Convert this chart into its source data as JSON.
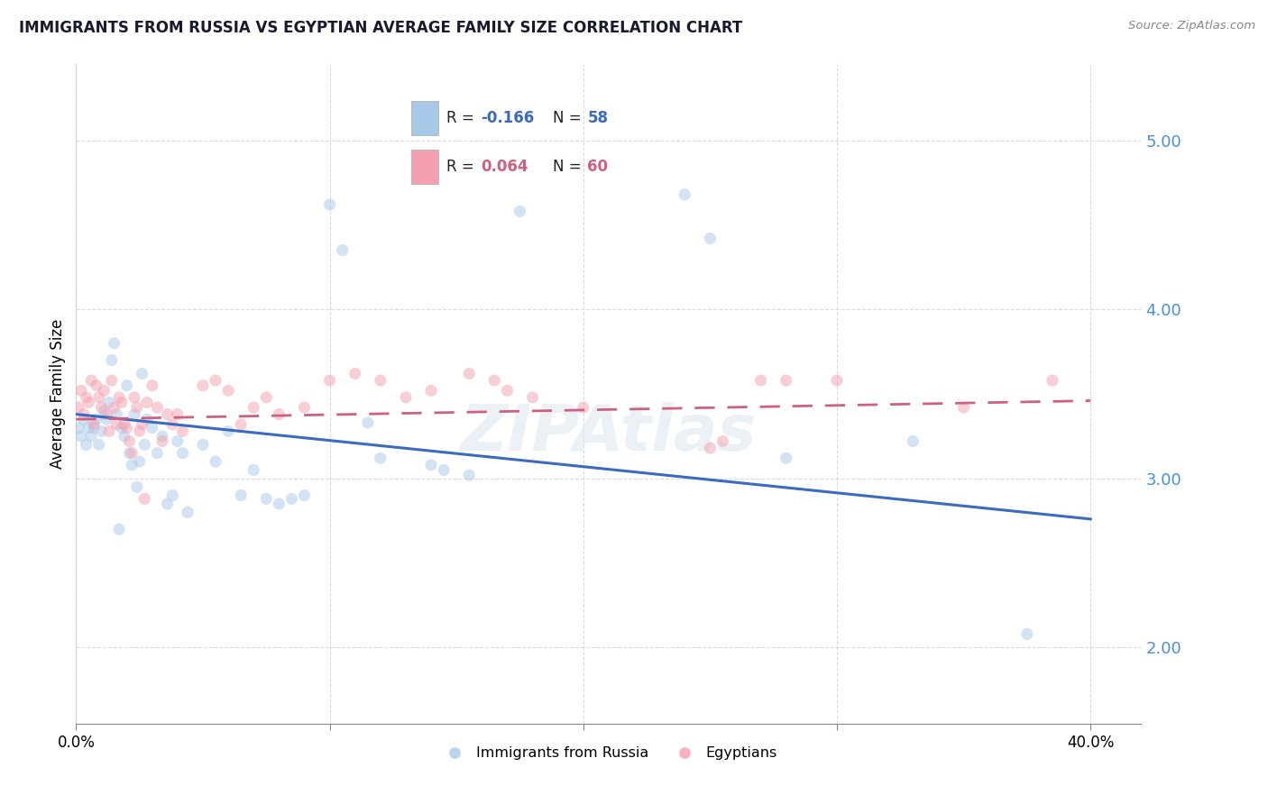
{
  "title": "IMMIGRANTS FROM RUSSIA VS EGYPTIAN AVERAGE FAMILY SIZE CORRELATION CHART",
  "source": "Source: ZipAtlas.com",
  "ylabel": "Average Family Size",
  "yticks": [
    2.0,
    3.0,
    4.0,
    5.0
  ],
  "xlim": [
    0.0,
    0.42
  ],
  "ylim": [
    1.55,
    5.45
  ],
  "blue_color": "#a8c8e8",
  "pink_color": "#f4a0b0",
  "blue_line_color": "#3a6bbf",
  "pink_line_color": "#d06080",
  "blue_scatter": [
    [
      0.001,
      3.3
    ],
    [
      0.002,
      3.25
    ],
    [
      0.003,
      3.35
    ],
    [
      0.004,
      3.2
    ],
    [
      0.005,
      3.3
    ],
    [
      0.006,
      3.25
    ],
    [
      0.007,
      3.3
    ],
    [
      0.008,
      3.35
    ],
    [
      0.009,
      3.2
    ],
    [
      0.01,
      3.28
    ],
    [
      0.011,
      3.4
    ],
    [
      0.012,
      3.35
    ],
    [
      0.013,
      3.45
    ],
    [
      0.014,
      3.7
    ],
    [
      0.015,
      3.8
    ],
    [
      0.016,
      3.38
    ],
    [
      0.017,
      2.7
    ],
    [
      0.018,
      3.3
    ],
    [
      0.019,
      3.25
    ],
    [
      0.02,
      3.55
    ],
    [
      0.021,
      3.15
    ],
    [
      0.022,
      3.08
    ],
    [
      0.023,
      3.38
    ],
    [
      0.024,
      2.95
    ],
    [
      0.025,
      3.1
    ],
    [
      0.026,
      3.62
    ],
    [
      0.027,
      3.2
    ],
    [
      0.028,
      3.35
    ],
    [
      0.03,
      3.3
    ],
    [
      0.032,
      3.15
    ],
    [
      0.034,
      3.25
    ],
    [
      0.036,
      2.85
    ],
    [
      0.038,
      2.9
    ],
    [
      0.04,
      3.22
    ],
    [
      0.042,
      3.15
    ],
    [
      0.044,
      2.8
    ],
    [
      0.05,
      3.2
    ],
    [
      0.055,
      3.1
    ],
    [
      0.06,
      3.28
    ],
    [
      0.065,
      2.9
    ],
    [
      0.07,
      3.05
    ],
    [
      0.075,
      2.88
    ],
    [
      0.08,
      2.85
    ],
    [
      0.085,
      2.88
    ],
    [
      0.09,
      2.9
    ],
    [
      0.1,
      4.62
    ],
    [
      0.105,
      4.35
    ],
    [
      0.115,
      3.33
    ],
    [
      0.12,
      3.12
    ],
    [
      0.14,
      3.08
    ],
    [
      0.145,
      3.05
    ],
    [
      0.155,
      3.02
    ],
    [
      0.175,
      4.58
    ],
    [
      0.24,
      4.68
    ],
    [
      0.25,
      4.42
    ],
    [
      0.28,
      3.12
    ],
    [
      0.33,
      3.22
    ],
    [
      0.375,
      2.08
    ]
  ],
  "pink_scatter": [
    [
      0.001,
      3.42
    ],
    [
      0.002,
      3.52
    ],
    [
      0.003,
      3.38
    ],
    [
      0.004,
      3.48
    ],
    [
      0.005,
      3.45
    ],
    [
      0.006,
      3.58
    ],
    [
      0.007,
      3.32
    ],
    [
      0.008,
      3.55
    ],
    [
      0.009,
      3.48
    ],
    [
      0.01,
      3.42
    ],
    [
      0.011,
      3.52
    ],
    [
      0.012,
      3.38
    ],
    [
      0.013,
      3.28
    ],
    [
      0.014,
      3.58
    ],
    [
      0.015,
      3.42
    ],
    [
      0.016,
      3.32
    ],
    [
      0.017,
      3.48
    ],
    [
      0.018,
      3.45
    ],
    [
      0.019,
      3.32
    ],
    [
      0.02,
      3.3
    ],
    [
      0.021,
      3.22
    ],
    [
      0.022,
      3.15
    ],
    [
      0.023,
      3.48
    ],
    [
      0.024,
      3.42
    ],
    [
      0.025,
      3.28
    ],
    [
      0.026,
      3.32
    ],
    [
      0.027,
      2.88
    ],
    [
      0.028,
      3.45
    ],
    [
      0.03,
      3.55
    ],
    [
      0.032,
      3.42
    ],
    [
      0.034,
      3.22
    ],
    [
      0.036,
      3.38
    ],
    [
      0.038,
      3.32
    ],
    [
      0.04,
      3.38
    ],
    [
      0.042,
      3.28
    ],
    [
      0.05,
      3.55
    ],
    [
      0.055,
      3.58
    ],
    [
      0.06,
      3.52
    ],
    [
      0.065,
      3.32
    ],
    [
      0.07,
      3.42
    ],
    [
      0.075,
      3.48
    ],
    [
      0.08,
      3.38
    ],
    [
      0.09,
      3.42
    ],
    [
      0.1,
      3.58
    ],
    [
      0.11,
      3.62
    ],
    [
      0.12,
      3.58
    ],
    [
      0.13,
      3.48
    ],
    [
      0.14,
      3.52
    ],
    [
      0.155,
      3.62
    ],
    [
      0.165,
      3.58
    ],
    [
      0.17,
      3.52
    ],
    [
      0.18,
      3.48
    ],
    [
      0.2,
      3.42
    ],
    [
      0.25,
      3.18
    ],
    [
      0.255,
      3.22
    ],
    [
      0.27,
      3.58
    ],
    [
      0.28,
      3.58
    ],
    [
      0.3,
      3.58
    ],
    [
      0.35,
      3.42
    ],
    [
      0.385,
      3.58
    ]
  ],
  "blue_line": {
    "x0": 0.0,
    "y0": 3.38,
    "x1": 0.4,
    "y1": 2.76
  },
  "pink_line": {
    "x0": 0.0,
    "y0": 3.35,
    "x1": 0.4,
    "y1": 3.46
  },
  "marker_size": 90,
  "alpha": 0.5,
  "background_color": "#ffffff",
  "grid_color": "#cccccc",
  "yaxis_tick_color": "#4a90d9",
  "legend_label1": "Immigrants from Russia",
  "legend_label2": "Egyptians",
  "legend_r1_text": "R = ",
  "legend_r1_val": "-0.166",
  "legend_n1_text": "N = ",
  "legend_n1_val": "58",
  "legend_r2_text": "R = ",
  "legend_r2_val": "0.064",
  "legend_n2_text": "N = ",
  "legend_n2_val": "60"
}
